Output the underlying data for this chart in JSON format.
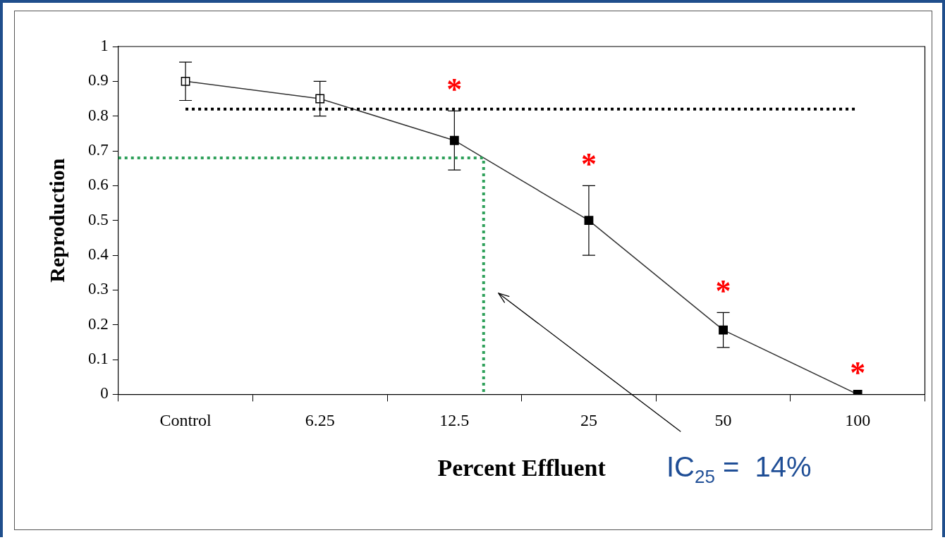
{
  "chart_data": {
    "type": "line",
    "xlabel": "Percent Effluent",
    "ylabel": "Reproduction",
    "categories": [
      "Control",
      "6.25",
      "12.5",
      "25",
      "50",
      "100"
    ],
    "series": [
      {
        "color": "#333333",
        "colors": [
          "#ffffff",
          "#ffffff",
          "#000000",
          "#000000",
          "#000000",
          "#000000"
        ],
        "values": [
          0.9,
          0.85,
          0.73,
          0.5,
          0.185,
          0.0
        ],
        "errors": [
          0.055,
          0.05,
          0.085,
          0.1,
          0.05,
          null
        ]
      }
    ],
    "ylim": [
      0,
      1
    ],
    "yticks": [
      0,
      0.1,
      0.2,
      0.3,
      0.4,
      0.5,
      0.6,
      0.7,
      0.8,
      0.9,
      1
    ],
    "marker": "square",
    "line_style": "solid",
    "grid": false,
    "legend": false,
    "ref_lines": [
      {
        "axis": "y",
        "value": 0.82,
        "color": "#000000",
        "line_style": "dotted"
      },
      {
        "axis": "y",
        "value": 0.68,
        "color": "#2ea05a",
        "line_style": "dotted"
      }
    ],
    "annotations": [
      {
        "text": "*",
        "x": "12.5",
        "y": 0.815
      },
      {
        "text": "*",
        "x": "25",
        "y": 0.6
      },
      {
        "text": "*",
        "x": "50",
        "y": 0.235
      },
      {
        "text": "*",
        "x": "100",
        "y": 0.0
      },
      "IC$_{25}$ =  14%"
    ]
  }
}
